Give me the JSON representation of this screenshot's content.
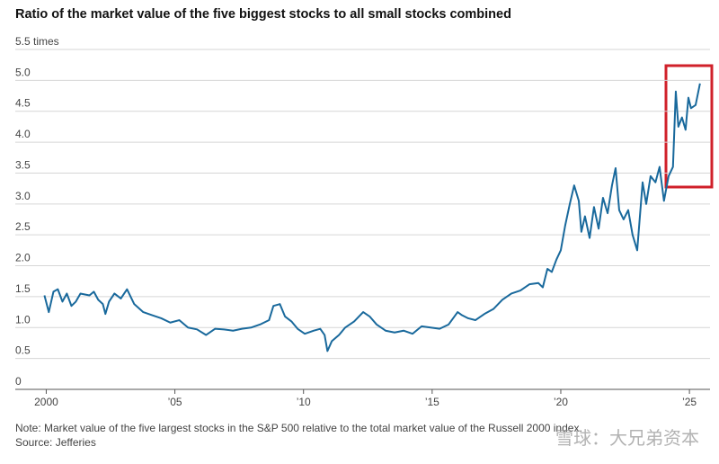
{
  "chart_data": {
    "type": "line",
    "title": "Ratio of the market value of the five biggest stocks to all small stocks combined",
    "note": "Note: Market value of the five largest stocks in the S&P 500 relative to the total market value of the Russell 2000 index.",
    "source": "Source: Jefferies",
    "watermark": "雪球：大兄弟资本",
    "color": "#19699c",
    "grid": true,
    "xlim": [
      1999.6,
      2025.8
    ],
    "ylim": [
      0,
      5.5
    ],
    "xticks": [
      2000,
      {
        "value": 2005,
        "label": "’05"
      },
      {
        "value": 2010,
        "label": "’10"
      },
      {
        "value": 2015,
        "label": "’15"
      },
      {
        "value": 2020,
        "label": "’20"
      },
      {
        "value": 2025,
        "label": "’25"
      }
    ],
    "yticks": [
      0,
      0.5,
      {
        "value": 1,
        "label": "1.0"
      },
      1.5,
      {
        "value": 2,
        "label": "2.0"
      },
      2.5,
      {
        "value": 3,
        "label": "3.0"
      },
      3.5,
      {
        "value": 4,
        "label": "4.0"
      },
      4.5,
      {
        "value": 5,
        "label": "5.0"
      },
      {
        "value": 5.5,
        "label": "5.5 times"
      }
    ],
    "x": [
      1999.93,
      2000.1,
      2000.28,
      2000.45,
      2000.63,
      2000.8,
      2000.98,
      2001.15,
      2001.33,
      2001.68,
      2001.85,
      2002.02,
      2002.2,
      2002.3,
      2002.44,
      2002.65,
      2002.9,
      2003.14,
      2003.42,
      2003.77,
      2004.12,
      2004.47,
      2004.82,
      2005.17,
      2005.51,
      2005.86,
      2006.21,
      2006.56,
      2006.91,
      2007.26,
      2007.61,
      2007.96,
      2008.31,
      2008.66,
      2008.83,
      2009.08,
      2009.28,
      2009.53,
      2009.77,
      2010.05,
      2010.4,
      2010.65,
      2010.82,
      2010.93,
      2011.1,
      2011.38,
      2011.62,
      2011.97,
      2012.32,
      2012.57,
      2012.84,
      2013.19,
      2013.54,
      2013.89,
      2014.24,
      2014.59,
      2014.94,
      2015.29,
      2015.64,
      2015.99,
      2016.16,
      2016.4,
      2016.68,
      2017.03,
      2017.38,
      2017.73,
      2018.08,
      2018.43,
      2018.78,
      2019.13,
      2019.3,
      2019.48,
      2019.65,
      2019.83,
      2020.0,
      2020.17,
      2020.35,
      2020.52,
      2020.7,
      2020.8,
      2020.94,
      2021.12,
      2021.29,
      2021.47,
      2021.64,
      2021.82,
      2021.99,
      2022.13,
      2022.27,
      2022.44,
      2022.62,
      2022.79,
      2022.97,
      2023.18,
      2023.32,
      2023.49,
      2023.68,
      2023.84,
      2024.01,
      2024.19,
      2024.36,
      2024.47,
      2024.57,
      2024.71,
      2024.85,
      2024.96,
      2025.06,
      2025.24,
      2025.41
    ],
    "values": [
      1.52,
      1.25,
      1.58,
      1.62,
      1.42,
      1.55,
      1.35,
      1.42,
      1.55,
      1.52,
      1.58,
      1.45,
      1.38,
      1.22,
      1.42,
      1.55,
      1.47,
      1.62,
      1.38,
      1.25,
      1.2,
      1.15,
      1.08,
      1.12,
      1.0,
      0.97,
      0.88,
      0.98,
      0.97,
      0.95,
      0.98,
      1.0,
      1.05,
      1.12,
      1.35,
      1.38,
      1.18,
      1.1,
      0.98,
      0.9,
      0.95,
      0.98,
      0.88,
      0.62,
      0.78,
      0.88,
      1.0,
      1.1,
      1.25,
      1.18,
      1.05,
      0.95,
      0.92,
      0.95,
      0.9,
      1.02,
      1.0,
      0.98,
      1.05,
      1.25,
      1.2,
      1.15,
      1.12,
      1.22,
      1.3,
      1.45,
      1.55,
      1.6,
      1.7,
      1.72,
      1.65,
      1.95,
      1.9,
      2.1,
      2.25,
      2.65,
      3.0,
      3.3,
      3.05,
      2.55,
      2.8,
      2.45,
      2.95,
      2.6,
      3.1,
      2.85,
      3.3,
      3.58,
      2.9,
      2.75,
      2.9,
      2.5,
      2.25,
      3.35,
      3.0,
      3.45,
      3.35,
      3.6,
      3.05,
      3.45,
      3.6,
      4.82,
      4.25,
      4.4,
      4.2,
      4.72,
      4.55,
      4.6,
      4.95
    ]
  }
}
